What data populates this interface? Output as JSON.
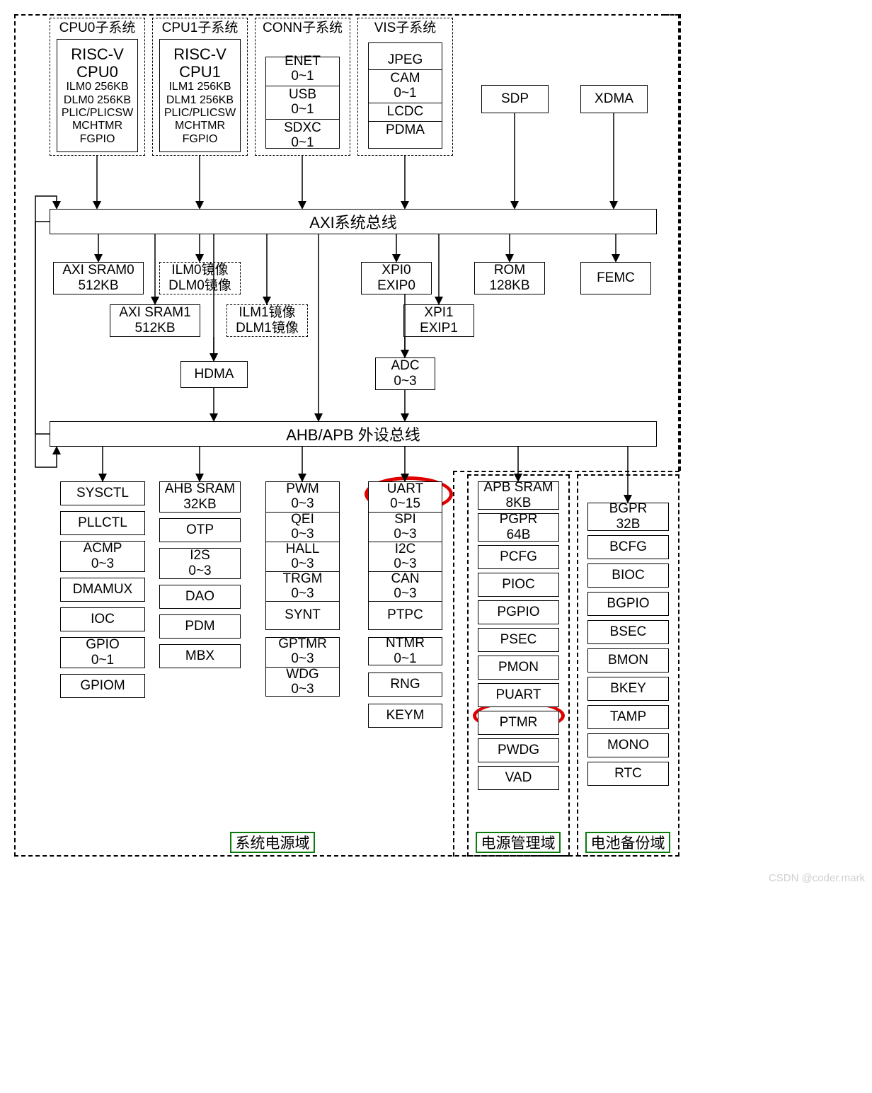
{
  "colors": {
    "stroke": "#000000",
    "background": "#ffffff",
    "highlight": "#e00000",
    "domain_border": "#0a7a0a",
    "watermark": "#d0d0d0"
  },
  "subsystems": {
    "cpu0": {
      "title": "CPU0子系统",
      "lines": [
        "RISC-V",
        "CPU0",
        "ILM0 256KB",
        "DLM0 256KB",
        "PLIC/PLICSW",
        "MCHTMR",
        "FGPIO"
      ]
    },
    "cpu1": {
      "title": "CPU1子系统",
      "lines": [
        "RISC-V",
        "CPU1",
        "ILM1 256KB",
        "DLM1 256KB",
        "PLIC/PLICSW",
        "MCHTMR",
        "FGPIO"
      ]
    },
    "conn": {
      "title": "CONN子系统",
      "cells": [
        "ENET\n0~1",
        "USB\n0~1",
        "SDXC\n0~1"
      ]
    },
    "vis": {
      "title": "VIS子系统",
      "cells": [
        "JPEG",
        "CAM\n0~1",
        "LCDC",
        "PDMA"
      ]
    }
  },
  "top_right": {
    "sdp": "SDP",
    "xdma": "XDMA"
  },
  "axi_bus": "AXI系统总线",
  "axi_row1": {
    "sram0": "AXI SRAM0\n512KB",
    "ilm0m": "ILM0镜像\nDLM0镜像",
    "xpi0": "XPI0\nEXIP0",
    "rom": "ROM\n128KB",
    "femc": "FEMC"
  },
  "axi_row2": {
    "sram1": "AXI SRAM1\n512KB",
    "ilm1m": "ILM1镜像\nDLM1镜像",
    "xpi1": "XPI1\nEXIP1"
  },
  "mid": {
    "hdma": "HDMA",
    "adc": "ADC\n0~3"
  },
  "ahb_bus": "AHB/APB 外设总线",
  "cols": {
    "c1": [
      "SYSCTL",
      "PLLCTL",
      "ACMP\n0~3",
      "DMAMUX",
      "IOC",
      "GPIO\n0~1",
      "GPIOM"
    ],
    "c2": [
      "AHB SRAM\n32KB",
      "OTP",
      "I2S\n0~3",
      "DAO",
      "PDM",
      "MBX"
    ],
    "c3_top": [
      "PWM\n0~3",
      "QEI\n0~3",
      "HALL\n0~3",
      "TRGM\n0~3",
      "SYNT"
    ],
    "c3_bot": [
      "GPTMR\n0~3",
      "WDG\n0~3"
    ],
    "c4_top": [
      "UART\n0~15",
      "SPI\n0~3",
      "I2C\n0~3",
      "CAN\n0~3",
      "PTPC"
    ],
    "c4_bot": [
      "NTMR\n0~1",
      "RNG",
      "KEYM"
    ],
    "c5": [
      "APB SRAM\n8KB",
      "PGPR\n64B",
      "PCFG",
      "PIOC",
      "PGPIO",
      "PSEC",
      "PMON",
      "PUART",
      "PTMR",
      "PWDG",
      "VAD"
    ],
    "c6": [
      "BGPR\n32B",
      "BCFG",
      "BIOC",
      "BGPIO",
      "BSEC",
      "BMON",
      "BKEY",
      "TAMP",
      "MONO",
      "RTC"
    ]
  },
  "domains": {
    "system": "系统电源域",
    "power": "电源管理域",
    "battery": "电池备份域"
  },
  "watermark": "CSDN @coder.mark"
}
